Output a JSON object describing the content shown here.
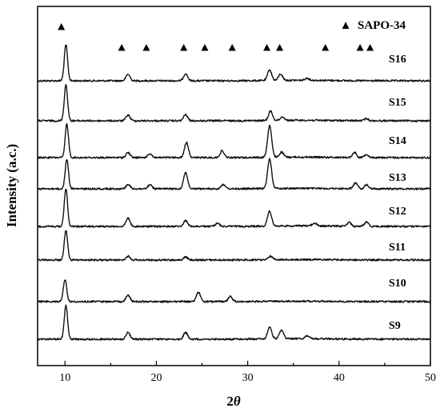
{
  "chart_data": {
    "type": "line",
    "title": "",
    "xlabel": "2",
    "xlabel_symbol": "θ",
    "ylabel": "Intensity (a.c.)",
    "xlim": [
      7,
      50
    ],
    "xticks": [
      10,
      20,
      30,
      40,
      50
    ],
    "grid": false,
    "legend": {
      "marker": "▲",
      "label": "SAPO-34",
      "placement": "top-right"
    },
    "marker_positions_2theta": [
      9.6,
      16.2,
      18.9,
      23.0,
      25.3,
      28.3,
      32.1,
      33.5,
      38.5,
      42.3,
      43.4
    ],
    "series": [
      {
        "name": "S16",
        "peaks": [
          [
            10.1,
            1.0
          ],
          [
            16.9,
            0.18
          ],
          [
            23.2,
            0.2
          ],
          [
            32.4,
            0.3
          ],
          [
            33.6,
            0.18
          ],
          [
            36.5,
            0.06
          ]
        ]
      },
      {
        "name": "S15",
        "peaks": [
          [
            10.1,
            1.0
          ],
          [
            16.9,
            0.16
          ],
          [
            23.2,
            0.17
          ],
          [
            32.5,
            0.26
          ],
          [
            33.8,
            0.1
          ],
          [
            43.0,
            0.06
          ]
        ]
      },
      {
        "name": "S14",
        "peaks": [
          [
            10.2,
            1.0
          ],
          [
            16.9,
            0.15
          ],
          [
            19.3,
            0.12
          ],
          [
            23.3,
            0.45
          ],
          [
            27.2,
            0.2
          ],
          [
            32.4,
            0.95
          ],
          [
            33.7,
            0.15
          ],
          [
            41.7,
            0.15
          ],
          [
            43.0,
            0.1
          ]
        ]
      },
      {
        "name": "S13",
        "peaks": [
          [
            10.2,
            1.0
          ],
          [
            16.9,
            0.15
          ],
          [
            19.3,
            0.13
          ],
          [
            23.2,
            0.55
          ],
          [
            27.3,
            0.15
          ],
          [
            32.4,
            1.0
          ],
          [
            41.8,
            0.2
          ],
          [
            43.0,
            0.13
          ]
        ]
      },
      {
        "name": "S12",
        "peaks": [
          [
            10.1,
            1.0
          ],
          [
            16.9,
            0.22
          ],
          [
            23.2,
            0.15
          ],
          [
            26.7,
            0.08
          ],
          [
            32.4,
            0.4
          ],
          [
            37.3,
            0.08
          ],
          [
            41.1,
            0.1
          ],
          [
            43.0,
            0.12
          ]
        ]
      },
      {
        "name": "S11",
        "peaks": [
          [
            10.1,
            1.0
          ],
          [
            16.9,
            0.13
          ],
          [
            23.2,
            0.1
          ],
          [
            32.5,
            0.12
          ]
        ]
      },
      {
        "name": "S10",
        "peaks": [
          [
            10.0,
            0.85
          ],
          [
            16.9,
            0.25
          ],
          [
            24.6,
            0.35
          ],
          [
            28.1,
            0.2
          ]
        ]
      },
      {
        "name": "S9",
        "peaks": [
          [
            10.1,
            1.0
          ],
          [
            16.9,
            0.2
          ],
          [
            23.2,
            0.2
          ],
          [
            32.4,
            0.35
          ],
          [
            33.7,
            0.25
          ],
          [
            36.5,
            0.08
          ]
        ]
      }
    ]
  }
}
